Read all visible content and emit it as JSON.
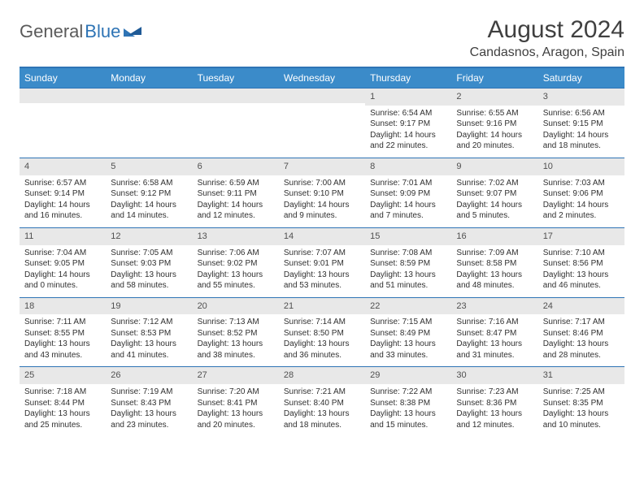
{
  "logo": {
    "text1": "General",
    "text2": "Blue"
  },
  "title": "August 2024",
  "location": "Candasnos, Aragon, Spain",
  "colors": {
    "header_bg": "#3b8bc9",
    "rule": "#2e74b5",
    "daynum_bg": "#e8e8e8",
    "text": "#303030",
    "title_text": "#404040"
  },
  "dow": [
    "Sunday",
    "Monday",
    "Tuesday",
    "Wednesday",
    "Thursday",
    "Friday",
    "Saturday"
  ],
  "weeks": [
    [
      null,
      null,
      null,
      null,
      {
        "n": "1",
        "sr": "6:54 AM",
        "ss": "9:17 PM",
        "dh": "14",
        "dm": "22"
      },
      {
        "n": "2",
        "sr": "6:55 AM",
        "ss": "9:16 PM",
        "dh": "14",
        "dm": "20"
      },
      {
        "n": "3",
        "sr": "6:56 AM",
        "ss": "9:15 PM",
        "dh": "14",
        "dm": "18"
      }
    ],
    [
      {
        "n": "4",
        "sr": "6:57 AM",
        "ss": "9:14 PM",
        "dh": "14",
        "dm": "16"
      },
      {
        "n": "5",
        "sr": "6:58 AM",
        "ss": "9:12 PM",
        "dh": "14",
        "dm": "14"
      },
      {
        "n": "6",
        "sr": "6:59 AM",
        "ss": "9:11 PM",
        "dh": "14",
        "dm": "12"
      },
      {
        "n": "7",
        "sr": "7:00 AM",
        "ss": "9:10 PM",
        "dh": "14",
        "dm": "9"
      },
      {
        "n": "8",
        "sr": "7:01 AM",
        "ss": "9:09 PM",
        "dh": "14",
        "dm": "7"
      },
      {
        "n": "9",
        "sr": "7:02 AM",
        "ss": "9:07 PM",
        "dh": "14",
        "dm": "5"
      },
      {
        "n": "10",
        "sr": "7:03 AM",
        "ss": "9:06 PM",
        "dh": "14",
        "dm": "2"
      }
    ],
    [
      {
        "n": "11",
        "sr": "7:04 AM",
        "ss": "9:05 PM",
        "dh": "14",
        "dm": "0"
      },
      {
        "n": "12",
        "sr": "7:05 AM",
        "ss": "9:03 PM",
        "dh": "13",
        "dm": "58"
      },
      {
        "n": "13",
        "sr": "7:06 AM",
        "ss": "9:02 PM",
        "dh": "13",
        "dm": "55"
      },
      {
        "n": "14",
        "sr": "7:07 AM",
        "ss": "9:01 PM",
        "dh": "13",
        "dm": "53"
      },
      {
        "n": "15",
        "sr": "7:08 AM",
        "ss": "8:59 PM",
        "dh": "13",
        "dm": "51"
      },
      {
        "n": "16",
        "sr": "7:09 AM",
        "ss": "8:58 PM",
        "dh": "13",
        "dm": "48"
      },
      {
        "n": "17",
        "sr": "7:10 AM",
        "ss": "8:56 PM",
        "dh": "13",
        "dm": "46"
      }
    ],
    [
      {
        "n": "18",
        "sr": "7:11 AM",
        "ss": "8:55 PM",
        "dh": "13",
        "dm": "43"
      },
      {
        "n": "19",
        "sr": "7:12 AM",
        "ss": "8:53 PM",
        "dh": "13",
        "dm": "41"
      },
      {
        "n": "20",
        "sr": "7:13 AM",
        "ss": "8:52 PM",
        "dh": "13",
        "dm": "38"
      },
      {
        "n": "21",
        "sr": "7:14 AM",
        "ss": "8:50 PM",
        "dh": "13",
        "dm": "36"
      },
      {
        "n": "22",
        "sr": "7:15 AM",
        "ss": "8:49 PM",
        "dh": "13",
        "dm": "33"
      },
      {
        "n": "23",
        "sr": "7:16 AM",
        "ss": "8:47 PM",
        "dh": "13",
        "dm": "31"
      },
      {
        "n": "24",
        "sr": "7:17 AM",
        "ss": "8:46 PM",
        "dh": "13",
        "dm": "28"
      }
    ],
    [
      {
        "n": "25",
        "sr": "7:18 AM",
        "ss": "8:44 PM",
        "dh": "13",
        "dm": "25"
      },
      {
        "n": "26",
        "sr": "7:19 AM",
        "ss": "8:43 PM",
        "dh": "13",
        "dm": "23"
      },
      {
        "n": "27",
        "sr": "7:20 AM",
        "ss": "8:41 PM",
        "dh": "13",
        "dm": "20"
      },
      {
        "n": "28",
        "sr": "7:21 AM",
        "ss": "8:40 PM",
        "dh": "13",
        "dm": "18"
      },
      {
        "n": "29",
        "sr": "7:22 AM",
        "ss": "8:38 PM",
        "dh": "13",
        "dm": "15"
      },
      {
        "n": "30",
        "sr": "7:23 AM",
        "ss": "8:36 PM",
        "dh": "13",
        "dm": "12"
      },
      {
        "n": "31",
        "sr": "7:25 AM",
        "ss": "8:35 PM",
        "dh": "13",
        "dm": "10"
      }
    ]
  ],
  "labels": {
    "sunrise": "Sunrise:",
    "sunset": "Sunset:",
    "daylight_prefix": "Daylight:",
    "hours_word": "hours",
    "and_word": "and",
    "minutes_suffix": "minutes."
  }
}
